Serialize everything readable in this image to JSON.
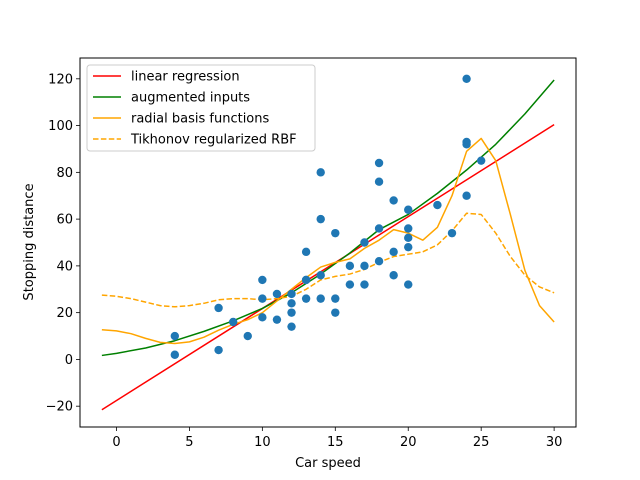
{
  "chart_data": {
    "type": "scatter",
    "xlabel": "Car speed",
    "ylabel": "Stopping distance",
    "xlim": [
      -2.5,
      31.5
    ],
    "ylim": [
      -28.9,
      128.9
    ],
    "xticks": [
      0,
      5,
      10,
      15,
      20,
      25,
      30
    ],
    "xtick_labels": [
      "0",
      "5",
      "10",
      "15",
      "20",
      "25",
      "30"
    ],
    "yticks": [
      -20,
      0,
      20,
      40,
      60,
      80,
      100,
      120
    ],
    "ytick_labels": [
      "−20",
      "0",
      "20",
      "40",
      "60",
      "80",
      "100",
      "120"
    ],
    "grid": false,
    "legend_position": "top-left",
    "scatter": {
      "color": "#1f77b4",
      "points": [
        [
          4,
          2
        ],
        [
          4,
          10
        ],
        [
          7,
          4
        ],
        [
          7,
          22
        ],
        [
          8,
          16
        ],
        [
          9,
          10
        ],
        [
          10,
          18
        ],
        [
          10,
          26
        ],
        [
          10,
          34
        ],
        [
          11,
          17
        ],
        [
          11,
          28
        ],
        [
          12,
          14
        ],
        [
          12,
          20
        ],
        [
          12,
          24
        ],
        [
          12,
          28
        ],
        [
          13,
          26
        ],
        [
          13,
          34
        ],
        [
          13,
          34
        ],
        [
          13,
          46
        ],
        [
          14,
          26
        ],
        [
          14,
          36
        ],
        [
          14,
          60
        ],
        [
          14,
          80
        ],
        [
          15,
          20
        ],
        [
          15,
          26
        ],
        [
          15,
          54
        ],
        [
          16,
          32
        ],
        [
          16,
          40
        ],
        [
          17,
          32
        ],
        [
          17,
          40
        ],
        [
          17,
          50
        ],
        [
          18,
          42
        ],
        [
          18,
          56
        ],
        [
          18,
          76
        ],
        [
          18,
          84
        ],
        [
          19,
          36
        ],
        [
          19,
          46
        ],
        [
          19,
          68
        ],
        [
          20,
          32
        ],
        [
          20,
          48
        ],
        [
          20,
          52
        ],
        [
          20,
          56
        ],
        [
          20,
          64
        ],
        [
          22,
          66
        ],
        [
          23,
          54
        ],
        [
          24,
          70
        ],
        [
          24,
          92
        ],
        [
          24,
          93
        ],
        [
          24,
          120
        ],
        [
          25,
          85
        ]
      ]
    },
    "series": [
      {
        "name": "linear regression",
        "color": "#ff0000",
        "dash": false,
        "x": [
          -1,
          30
        ],
        "y": [
          -21.5,
          100.4
        ]
      },
      {
        "name": "augmented inputs",
        "color": "#008000",
        "dash": false,
        "x": [
          -1,
          0,
          2,
          4,
          6,
          8,
          10,
          12,
          14,
          16,
          18,
          20,
          22,
          24,
          26,
          28,
          30
        ],
        "y": [
          1.7,
          2.6,
          4.9,
          8,
          12,
          16.5,
          21.8,
          28.5,
          36.5,
          45.5,
          55.5,
          62,
          71,
          81,
          92,
          105,
          119.5
        ]
      },
      {
        "name": "radial basis functions",
        "color": "#ffa500",
        "dash": false,
        "x": [
          -1,
          0,
          1,
          2,
          3,
          4,
          5,
          6,
          7,
          8,
          9,
          10,
          11,
          12,
          13,
          14,
          15,
          16,
          17,
          18,
          19,
          20,
          21,
          22,
          23,
          24,
          25,
          26,
          27,
          28,
          29,
          30
        ],
        "y": [
          12.7,
          12.2,
          11,
          9,
          7.3,
          6.8,
          7.5,
          9.5,
          12.5,
          15,
          17,
          20,
          25,
          30,
          35,
          39.5,
          41.5,
          43,
          47.5,
          51,
          55.5,
          54,
          51,
          56.5,
          70,
          89,
          94.5,
          85,
          62,
          38,
          23,
          16
        ]
      },
      {
        "name": "Tikhonov regularized RBF",
        "color": "#ffa500",
        "dash": true,
        "x": [
          -1,
          0,
          1,
          2,
          3,
          4,
          5,
          6,
          7,
          8,
          9,
          10,
          11,
          12,
          13,
          14,
          15,
          16,
          17,
          18,
          19,
          20,
          21,
          22,
          23,
          24,
          25,
          26,
          27,
          28,
          29,
          30
        ],
        "y": [
          27.5,
          27,
          26,
          24.5,
          23,
          22.5,
          23,
          24,
          25.5,
          26,
          26,
          25.5,
          26,
          27,
          30,
          34,
          35.5,
          36.5,
          38.5,
          41.5,
          44,
          45,
          46,
          49,
          55,
          62.5,
          62,
          54,
          44,
          36,
          31,
          28.5
        ]
      }
    ]
  }
}
